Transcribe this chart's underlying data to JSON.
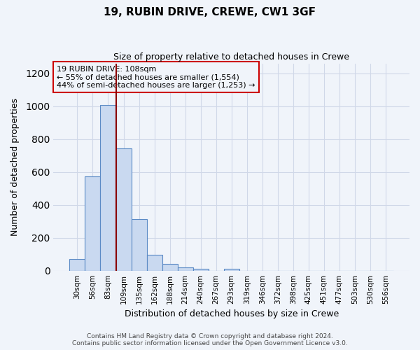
{
  "title1": "19, RUBIN DRIVE, CREWE, CW1 3GF",
  "title2": "Size of property relative to detached houses in Crewe",
  "xlabel": "Distribution of detached houses by size in Crewe",
  "ylabel": "Number of detached properties",
  "bar_values": [
    70,
    575,
    1005,
    745,
    315,
    95,
    40,
    20,
    10,
    0,
    10,
    0,
    0,
    0,
    0,
    0,
    0,
    0,
    0,
    0,
    0
  ],
  "bar_labels": [
    "30sqm",
    "56sqm",
    "83sqm",
    "109sqm",
    "135sqm",
    "162sqm",
    "188sqm",
    "214sqm",
    "240sqm",
    "267sqm",
    "293sqm",
    "319sqm",
    "346sqm",
    "372sqm",
    "398sqm",
    "425sqm",
    "451sqm",
    "477sqm",
    "503sqm",
    "530sqm",
    "556sqm"
  ],
  "bar_color": "#c9d9f0",
  "bar_edge_color": "#5b8ac5",
  "grid_color": "#d0d8e8",
  "background_color": "#f0f4fa",
  "vline_x_index": 3,
  "vline_color": "#8b0000",
  "annotation_text": "19 RUBIN DRIVE: 108sqm\n← 55% of detached houses are smaller (1,554)\n44% of semi-detached houses are larger (1,253) →",
  "annotation_box_edge": "#cc0000",
  "ylim": [
    0,
    1260
  ],
  "yticks": [
    0,
    200,
    400,
    600,
    800,
    1000,
    1200
  ],
  "footer1": "Contains HM Land Registry data © Crown copyright and database right 2024.",
  "footer2": "Contains public sector information licensed under the Open Government Licence v3.0."
}
